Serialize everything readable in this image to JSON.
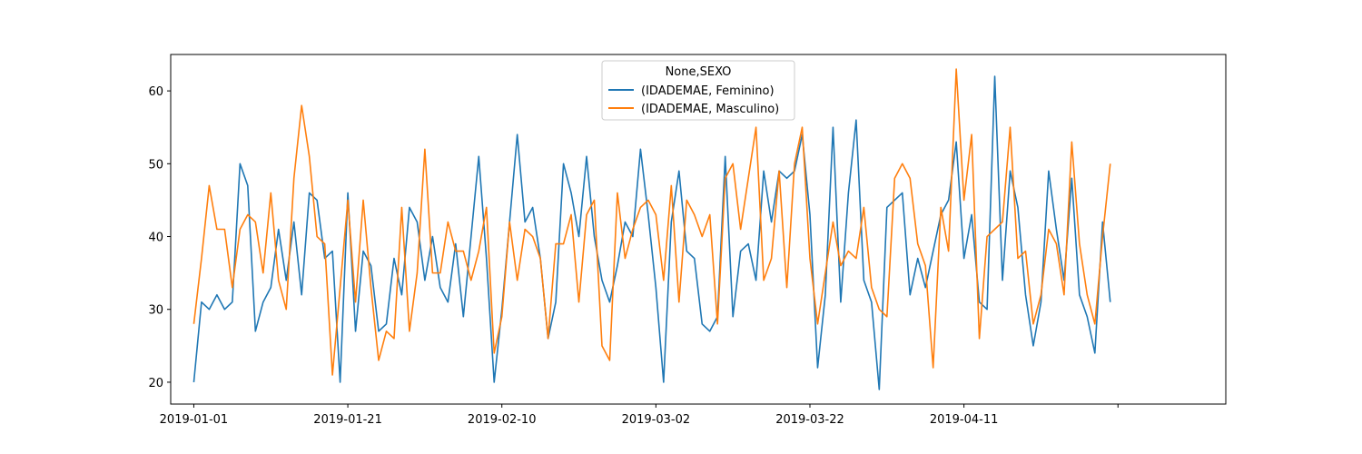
{
  "chart_data": {
    "type": "line",
    "x_start": "2019-01-01",
    "x_step_days": 1,
    "xlim": [
      "2018-12-29",
      "2019-05-15"
    ],
    "ylim": [
      17,
      65
    ],
    "x_tick_labels": [
      "2019-01-01",
      "2019-01-21",
      "2019-02-10",
      "2019-03-02",
      "2019-03-22",
      "2019-04-11",
      ""
    ],
    "x_tick_dates": [
      "2019-01-01",
      "2019-01-21",
      "2019-02-10",
      "2019-03-02",
      "2019-03-22",
      "2019-04-11",
      "2019-05-01"
    ],
    "y_ticks": [
      20,
      30,
      40,
      50,
      60
    ],
    "y_tick_labels": [
      "20",
      "30",
      "40",
      "50",
      "60"
    ],
    "grid": false,
    "legend": {
      "title": "None,SEXO",
      "placement": "top-center"
    },
    "series": [
      {
        "name": "(IDADEMAE, Feminino)",
        "color": "#1f77b4",
        "values": [
          20,
          31,
          30,
          32,
          30,
          31,
          50,
          47,
          27,
          31,
          33,
          41,
          34,
          42,
          32,
          46,
          45,
          37,
          38,
          20,
          46,
          27,
          38,
          36,
          27,
          28,
          37,
          32,
          44,
          42,
          34,
          40,
          33,
          31,
          39,
          29,
          40,
          51,
          37,
          20,
          30,
          42,
          54,
          42,
          44,
          37,
          26,
          31,
          50,
          46,
          40,
          51,
          40,
          34,
          31,
          36,
          42,
          40,
          52,
          43,
          33,
          20,
          42,
          49,
          38,
          37,
          28,
          27,
          29,
          51,
          29,
          38,
          39,
          34,
          49,
          42,
          49,
          48,
          49,
          54,
          43,
          22,
          32,
          55,
          31,
          46,
          56,
          34,
          31,
          19,
          44,
          45,
          46,
          32,
          37,
          33,
          38,
          43,
          45,
          53,
          37,
          43,
          31,
          30,
          62,
          34,
          49,
          44,
          32,
          25,
          31,
          49,
          41,
          34,
          48,
          32,
          29,
          24,
          42,
          31
        ]
      },
      {
        "name": "(IDADEMAE, Masculino)",
        "color": "#ff7f0e",
        "values": [
          28,
          37,
          47,
          41,
          41,
          33,
          41,
          43,
          42,
          35,
          46,
          34,
          30,
          48,
          58,
          51,
          40,
          39,
          21,
          33,
          45,
          31,
          45,
          33,
          23,
          27,
          26,
          44,
          27,
          35,
          52,
          35,
          35,
          42,
          38,
          38,
          34,
          38,
          44,
          24,
          29,
          42,
          34,
          41,
          40,
          37,
          26,
          39,
          39,
          43,
          31,
          43,
          45,
          25,
          23,
          46,
          37,
          41,
          44,
          45,
          43,
          34,
          47,
          31,
          45,
          43,
          40,
          43,
          28,
          48,
          50,
          41,
          48,
          55,
          34,
          37,
          49,
          33,
          50,
          55,
          37,
          28,
          35,
          42,
          36,
          38,
          37,
          44,
          33,
          30,
          29,
          48,
          50,
          48,
          39,
          36,
          22,
          44,
          38,
          63,
          45,
          54,
          26,
          40,
          41,
          42,
          55,
          37,
          38,
          28,
          32,
          41,
          39,
          32,
          53,
          39,
          32,
          28,
          40,
          50
        ]
      }
    ]
  }
}
